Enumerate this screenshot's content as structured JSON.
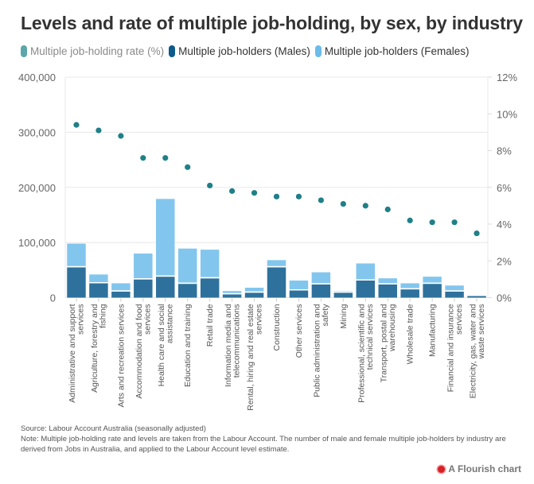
{
  "title": "Levels and rate of multiple job-holding, by sex, by industry",
  "legend": [
    {
      "label": "Multiple job-holding rate (%)",
      "color": "#5aa6aa",
      "dimmed": true
    },
    {
      "label": "Multiple job-holders (Males)",
      "color": "#0e5a8a",
      "dimmed": false
    },
    {
      "label": "Multiple job-holders (Females)",
      "color": "#6cbcea",
      "dimmed": false
    }
  ],
  "colors": {
    "males_bar": "#2e719c",
    "females_bar": "#82c6ee",
    "rate_dot": "#1f8088",
    "grid": "#e8e8e8"
  },
  "chart_data": {
    "type": "bar",
    "subtype": "stacked bar with dot overlay (dual axis)",
    "title": "Levels and rate of multiple job-holding, by sex, by industry",
    "categories": [
      "Administrative and support services",
      "Agriculture, forestry and fishing",
      "Arts and recreation services",
      "Accommodation and food services",
      "Health care and social assistance",
      "Education and training",
      "Retail trade",
      "Information media and telecommunications",
      "Rental, hiring and real estate services",
      "Construction",
      "Other services",
      "Public administration and safety",
      "Mining",
      "Professional, scientific and technical services",
      "Transport, postal and warehousing",
      "Wholesale trade",
      "Manufacturing",
      "Financial and insurance services",
      "Electricity, gas, water and waste services"
    ],
    "category_label_lines": [
      [
        "Administrative and support",
        "services"
      ],
      [
        "Agriculture, forestry and",
        "fishing"
      ],
      [
        "Arts and recreation services"
      ],
      [
        "Accommodation and food",
        "services"
      ],
      [
        "Health care and social",
        "assistance"
      ],
      [
        "Education and training"
      ],
      [
        "Retail trade"
      ],
      [
        "Information media and",
        "telecommunications"
      ],
      [
        "Rental, hiring and real estate",
        "services"
      ],
      [
        "Construction"
      ],
      [
        "Other services"
      ],
      [
        "Public administration and",
        "safety"
      ],
      [
        "Mining"
      ],
      [
        "Professional, scientific and",
        "technical services"
      ],
      [
        "Transport, postal and",
        "warehousing"
      ],
      [
        "Wholesale trade"
      ],
      [
        "Manufacturing"
      ],
      [
        "Financial and insurance",
        "services"
      ],
      [
        "Electricity, gas, water and",
        "waste services"
      ]
    ],
    "series": [
      {
        "name": "Multiple job-holders (Males)",
        "axis": "left",
        "kind": "bar",
        "values": [
          55000,
          26000,
          11000,
          33000,
          38000,
          25000,
          35000,
          6000,
          9000,
          55000,
          13000,
          24000,
          9000,
          31000,
          24000,
          15000,
          25000,
          11000,
          3000
        ]
      },
      {
        "name": "Multiple job-holders (Females)",
        "axis": "left",
        "kind": "bar",
        "values": [
          43000,
          16000,
          15000,
          47000,
          141000,
          64000,
          52000,
          6000,
          9000,
          13000,
          18000,
          22000,
          3000,
          31000,
          11000,
          11000,
          13000,
          11000,
          2000
        ]
      },
      {
        "name": "Multiple job-holding rate (%)",
        "axis": "right",
        "kind": "dot",
        "values": [
          9.4,
          9.1,
          8.8,
          7.6,
          7.6,
          7.1,
          6.1,
          5.8,
          5.7,
          5.5,
          5.5,
          5.3,
          5.1,
          5.0,
          4.8,
          4.2,
          4.1,
          4.1,
          3.5
        ]
      }
    ],
    "y_left": {
      "label": "",
      "range": [
        0,
        400000
      ],
      "ticks": [
        0,
        100000,
        200000,
        300000,
        400000
      ],
      "tick_labels": [
        "0",
        "100,000",
        "200,000",
        "300,000",
        "400,000"
      ]
    },
    "y_right": {
      "label": "",
      "range": [
        0,
        12
      ],
      "ticks": [
        0,
        2,
        4,
        6,
        8,
        10,
        12
      ],
      "tick_labels": [
        "0%",
        "2%",
        "4%",
        "6%",
        "8%",
        "10%",
        "12%"
      ]
    },
    "xlabel": "",
    "grid": true,
    "legend_position": "top-left"
  },
  "footer": {
    "source": "Source: Labour Account Australia (seasonally adjusted)",
    "note": "Note: Multiple job-holding rate and levels are taken from the Labour Account. The number of male and female multiple job-holders by industry are derived from Jobs in Australia, and applied to the Labour Account level estimate."
  },
  "branding": {
    "label": "A Flourish chart",
    "icon": "flourish-logo-icon"
  }
}
